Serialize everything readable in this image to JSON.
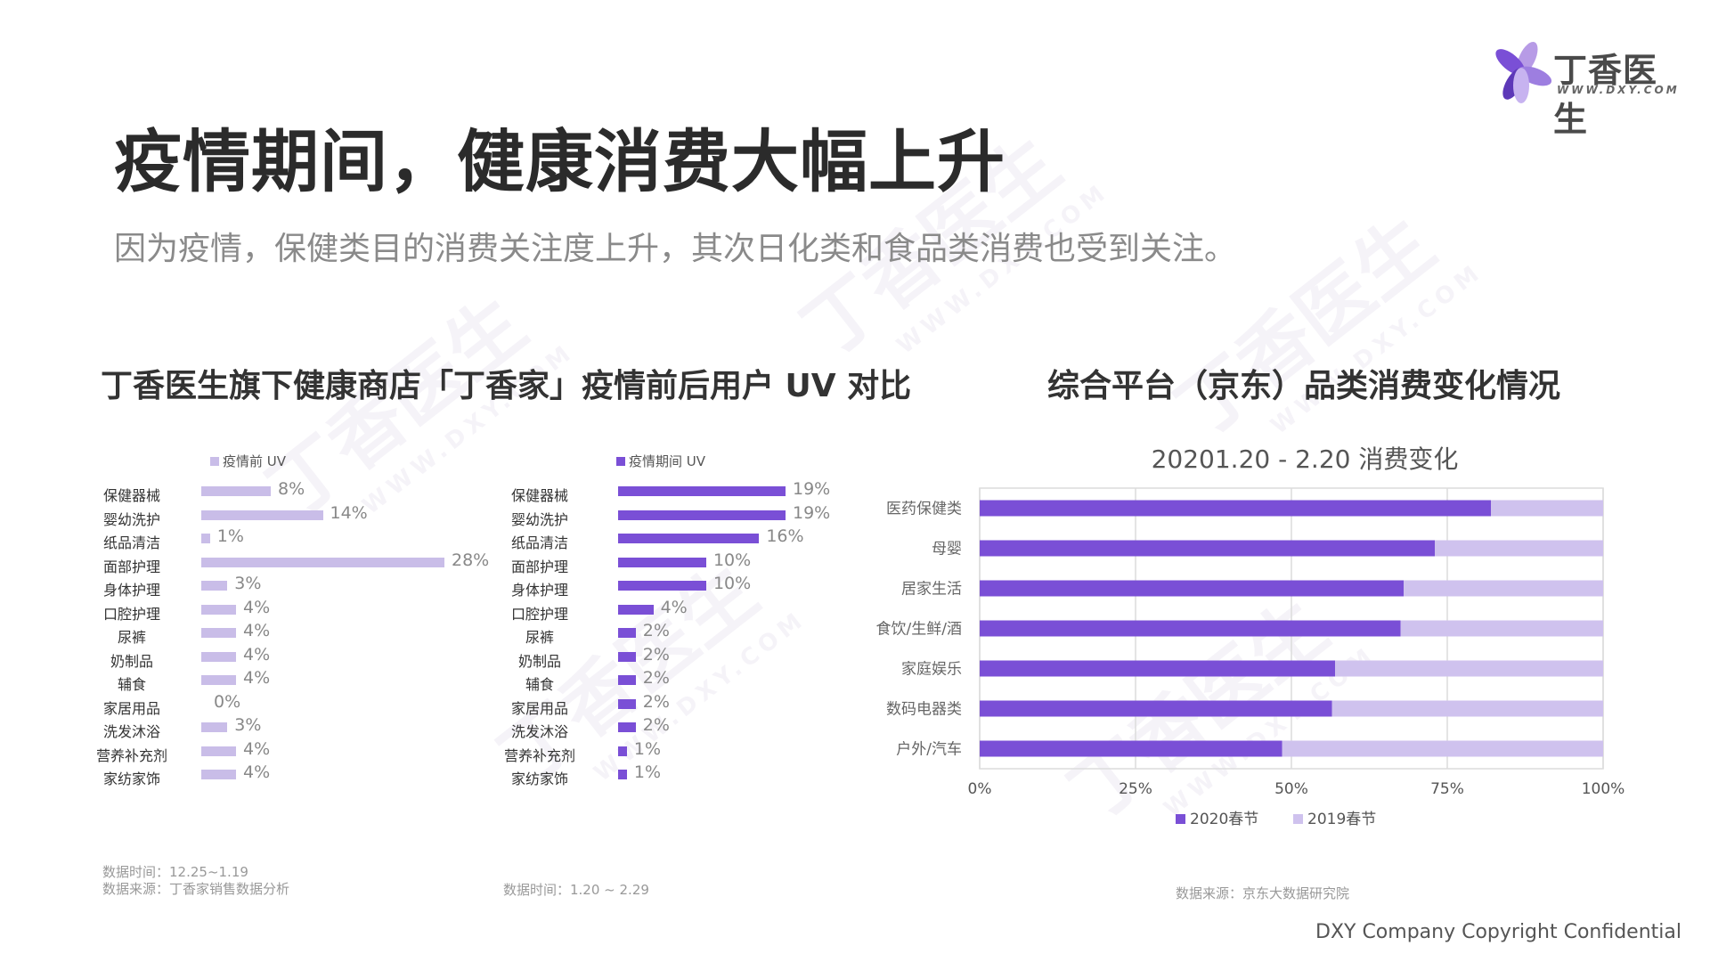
{
  "brand": {
    "name": "丁香医生",
    "url": "WWW.DXY.COM"
  },
  "title": "疫情期间，健康消费大幅上升",
  "subtitle": "因为疫情，保健类目的消费关注度上升，其次日化类和食品类消费也受到关注。",
  "left_section": {
    "title": "丁香医生旗下健康商店「丁香家」疫情前后用户 UV 对比"
  },
  "right_section": {
    "title": "综合平台（京东）品类消费变化情况"
  },
  "colors": {
    "pre": "#c9bde8",
    "during": "#7a4fd6",
    "y2020": "#7a4fd6",
    "y2019": "#cfc2ee"
  },
  "chart_data": [
    {
      "type": "bar",
      "orientation": "horizontal",
      "legend": "疫情前 UV",
      "categories": [
        "保健器械",
        "婴幼洗护",
        "纸品清洁",
        "面部护理",
        "身体护理",
        "口腔护理",
        "尿裤",
        "奶制品",
        "辅食",
        "家居用品",
        "洗发沐浴",
        "营养补充剂",
        "家纺家饰"
      ],
      "values": [
        8,
        14,
        1,
        28,
        3,
        4,
        4,
        4,
        4,
        0,
        3,
        4,
        4
      ],
      "value_labels": [
        "8%",
        "14%",
        "1%",
        "28%",
        "3%",
        "4%",
        "4%",
        "4%",
        "4%",
        "0%",
        "3%",
        "4%",
        "4%"
      ],
      "xlim": [
        0,
        28
      ]
    },
    {
      "type": "bar",
      "orientation": "horizontal",
      "legend": "疫情期间 UV",
      "categories": [
        "保健器械",
        "婴幼洗护",
        "纸品清洁",
        "面部护理",
        "身体护理",
        "口腔护理",
        "尿裤",
        "奶制品",
        "辅食",
        "家居用品",
        "洗发沐浴",
        "营养补充剂",
        "家纺家饰"
      ],
      "values": [
        19,
        19,
        16,
        10,
        10,
        4,
        2,
        2,
        2,
        2,
        2,
        1,
        1
      ],
      "value_labels": [
        "19%",
        "19%",
        "16%",
        "10%",
        "10%",
        "4%",
        "2%",
        "2%",
        "2%",
        "2%",
        "2%",
        "1%",
        "1%"
      ],
      "xlim": [
        0,
        19
      ]
    },
    {
      "type": "bar",
      "orientation": "horizontal",
      "stacked": "percent",
      "title": "20201.20 - 2.20 消费变化",
      "categories": [
        "医药保健类",
        "母婴",
        "居家生活",
        "食饮/生鲜/酒",
        "家庭娱乐",
        "数码电器类",
        "户外/汽车"
      ],
      "series": [
        {
          "name": "2020春节",
          "values": [
            82,
            73,
            68,
            67.5,
            57,
            56.5,
            48.5
          ]
        },
        {
          "name": "2019春节",
          "values": [
            18,
            27,
            32,
            32.5,
            43,
            43.5,
            51.5
          ]
        }
      ],
      "xticks": [
        "0%",
        "25%",
        "50%",
        "75%",
        "100%"
      ],
      "xlim": [
        0,
        100
      ]
    }
  ],
  "notes": {
    "left_time": "数据时间：12.25~1.19",
    "left_source": "数据来源：丁香家销售数据分析",
    "middle_time": "数据时间：1.20 ~ 2.29",
    "right_source": "数据来源：京东大数据研究院"
  },
  "copyright": "DXY Company Copyright Confidential"
}
